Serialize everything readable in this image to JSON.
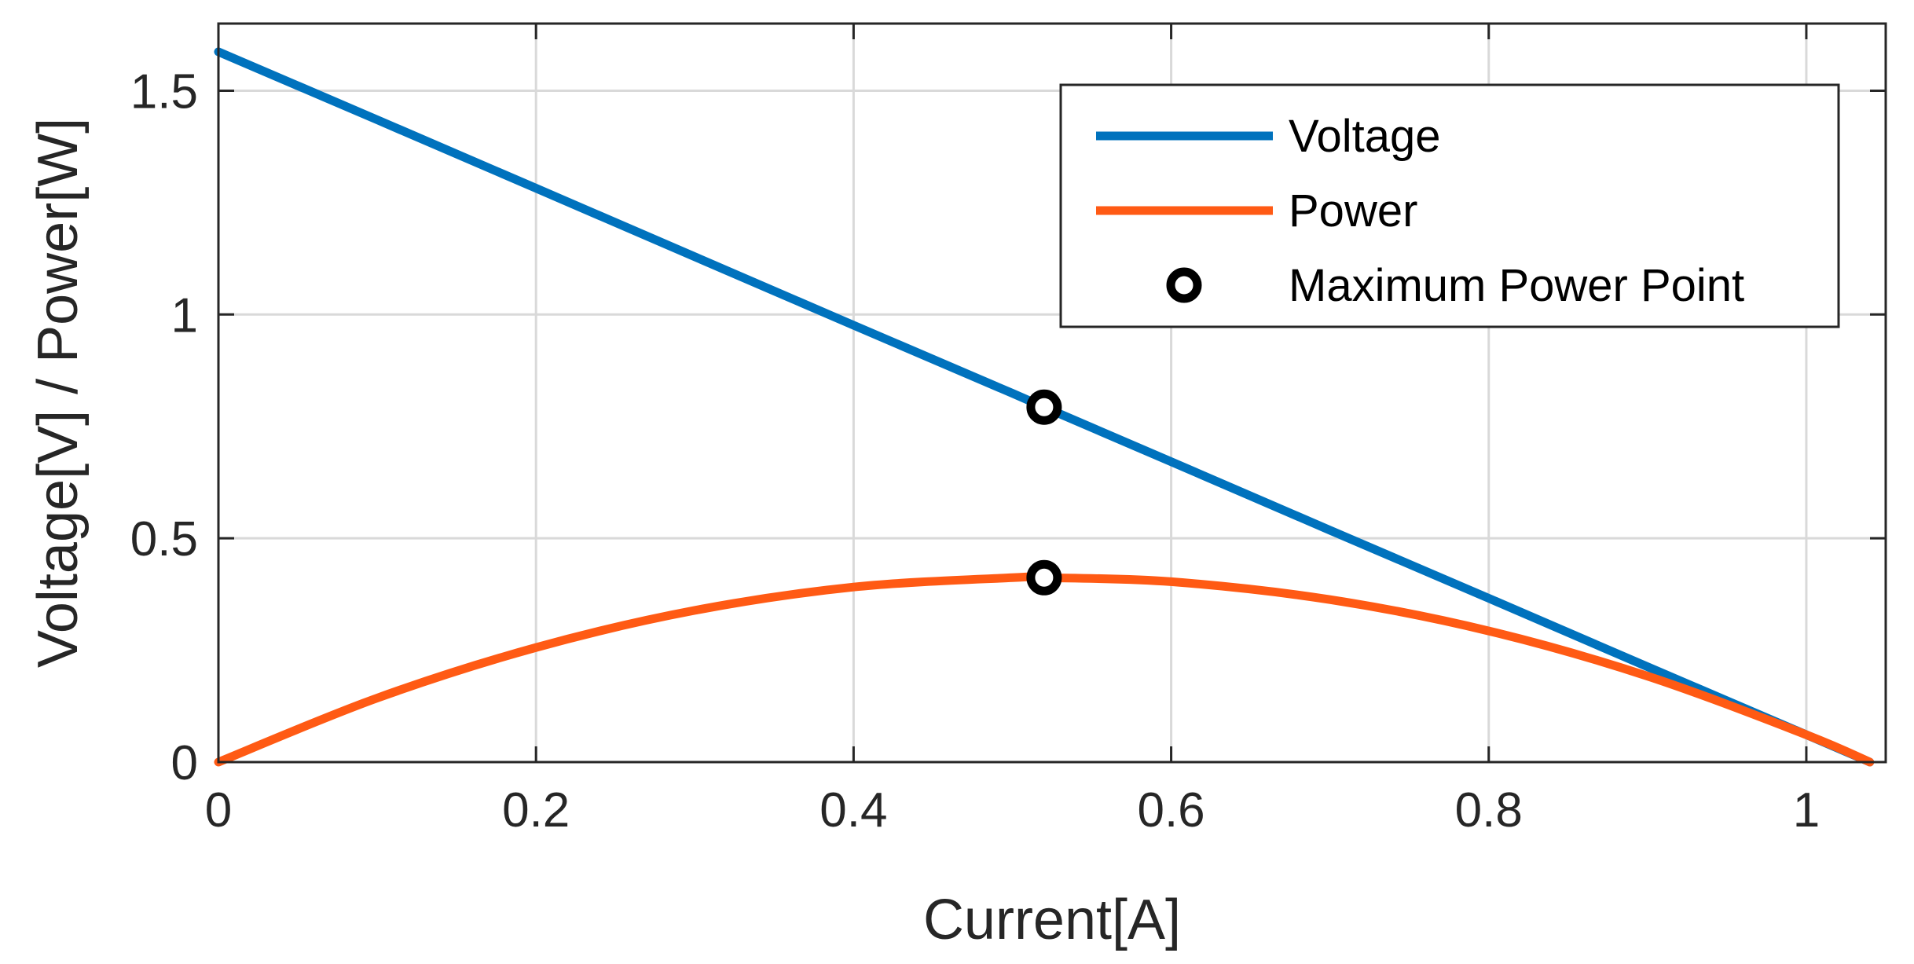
{
  "chart_data": {
    "type": "line",
    "title": "",
    "xlabel": "Current[A]",
    "ylabel": "Voltage[V] / Power[W]",
    "xlim": [
      0,
      1.05
    ],
    "ylim": [
      0,
      1.65
    ],
    "grid": true,
    "legend_position": "top-right",
    "x_ticks": [
      0,
      0.2,
      0.4,
      0.6,
      0.8,
      1
    ],
    "x_tick_labels": [
      "0",
      "0.2",
      "0.4",
      "0.6",
      "0.8",
      "1"
    ],
    "y_ticks": [
      0,
      0.5,
      1,
      1.5
    ],
    "y_tick_labels": [
      "0",
      "0.5",
      "1",
      "1.5"
    ],
    "series": [
      {
        "name": "Voltage",
        "color": "#0072BD",
        "x": [
          0,
          0.1,
          0.2,
          0.3,
          0.4,
          0.5,
          0.52,
          0.6,
          0.7,
          0.8,
          0.9,
          1.0,
          1.04
        ],
        "y": [
          1.587,
          1.435,
          1.282,
          1.129,
          0.976,
          0.824,
          0.793,
          0.671,
          0.518,
          0.366,
          0.213,
          0.061,
          0.0
        ]
      },
      {
        "name": "Power",
        "color": "#FF5A14",
        "x": [
          0,
          0.1,
          0.2,
          0.3,
          0.4,
          0.5,
          0.52,
          0.6,
          0.7,
          0.8,
          0.9,
          1.0,
          1.04
        ],
        "y": [
          0.0,
          0.143,
          0.256,
          0.339,
          0.391,
          0.412,
          0.412,
          0.403,
          0.363,
          0.293,
          0.192,
          0.061,
          0.0
        ]
      },
      {
        "name": "Maximum Power Point",
        "color": "#000000",
        "marker": "circle",
        "x": [
          0.52,
          0.52
        ],
        "y": [
          0.793,
          0.412
        ]
      }
    ]
  }
}
